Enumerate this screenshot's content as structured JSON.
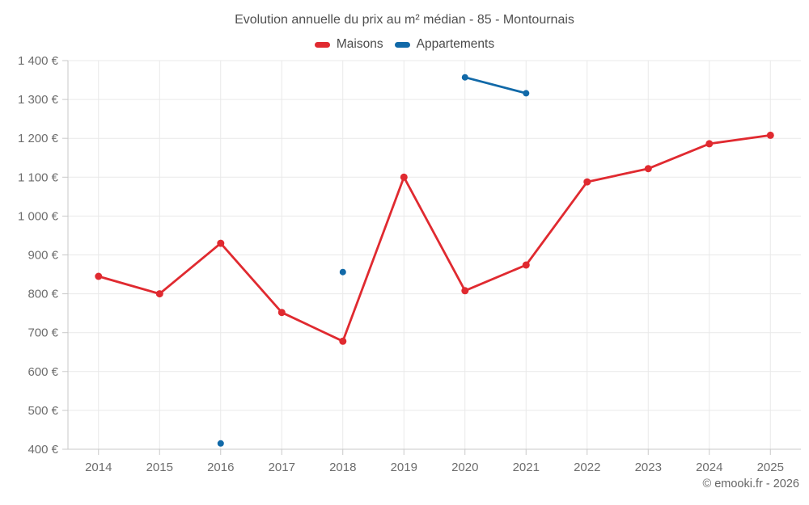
{
  "title": "Evolution annuelle du prix au m² médian - 85 - Montournais",
  "footer": "© emooki.fr - 2026",
  "legend": [
    {
      "label": "Maisons",
      "color": "#e02a30"
    },
    {
      "label": "Appartements",
      "color": "#1169a8"
    }
  ],
  "chart_data": {
    "type": "line",
    "title": "Evolution annuelle du prix au m² médian - 85 - Montournais",
    "categories": [
      "2014",
      "2015",
      "2016",
      "2017",
      "2018",
      "2019",
      "2020",
      "2021",
      "2022",
      "2023",
      "2024",
      "2025"
    ],
    "series": [
      {
        "name": "Maisons",
        "color": "#e02a30",
        "values": [
          845,
          800,
          930,
          752,
          678,
          1100,
          808,
          874,
          1088,
          1122,
          1186,
          1208
        ]
      },
      {
        "name": "Appartements",
        "color": "#1169a8",
        "values": [
          null,
          null,
          415,
          null,
          856,
          null,
          1357,
          1316,
          null,
          null,
          null,
          null
        ]
      }
    ],
    "ylim": [
      400,
      1400
    ],
    "ytick_step": 100,
    "ytick_labels": [
      "400 €",
      "500 €",
      "600 €",
      "700 €",
      "800 €",
      "900 €",
      "1 000 €",
      "1 100 €",
      "1 200 €",
      "1 300 €",
      "1 400 €"
    ],
    "unit": "€",
    "grid": true,
    "legend_position": "top",
    "annotations": [
      "© emooki.fr - 2026"
    ]
  }
}
